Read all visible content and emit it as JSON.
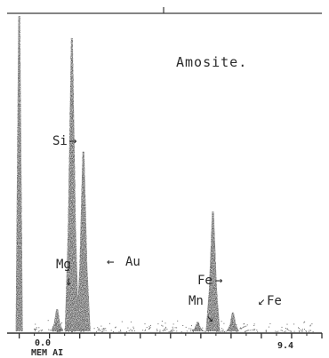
{
  "chart_data": {
    "type": "spectrum",
    "title": "Amosite.",
    "xlabel": "",
    "ylabel": "",
    "x_tick_labels": [
      "0.0",
      "9.4"
    ],
    "axis_note": "MEM AI",
    "grid": false,
    "legend": "none",
    "x_unit": "keV",
    "xlim": [
      -0.4,
      10.0
    ],
    "ylim": [
      0,
      100
    ],
    "peaks": [
      {
        "label": "",
        "x": 0.0,
        "height": 100
      },
      {
        "label": "Mg",
        "x": 1.25,
        "height": 7
      },
      {
        "label": "Si",
        "x": 1.74,
        "height": 93
      },
      {
        "label": "Au",
        "x": 2.12,
        "height": 57
      },
      {
        "label": "Mn",
        "x": 5.9,
        "height": 3
      },
      {
        "label": "Fe",
        "x": 6.4,
        "height": 38
      },
      {
        "label": "Fe",
        "x": 7.06,
        "height": 6
      }
    ]
  },
  "annotations": [
    {
      "text": "Si",
      "peak": "Si"
    },
    {
      "text": "Au",
      "peak": "Au"
    },
    {
      "text": "Mg",
      "peak": "Mg"
    },
    {
      "text": "Fe",
      "peak": "Fe"
    },
    {
      "text": "Mn",
      "peak": "Mn"
    },
    {
      "text": "Fe",
      "peak": "Fe"
    }
  ]
}
